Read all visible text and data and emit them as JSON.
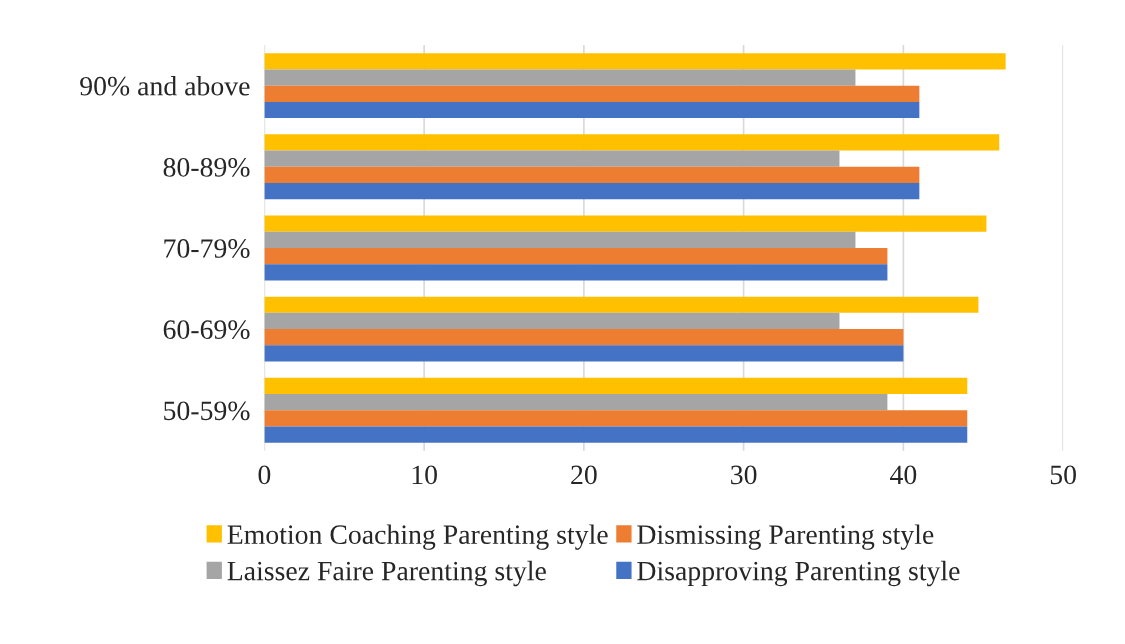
{
  "chart_data": {
    "type": "bar",
    "orientation": "horizontal",
    "categories": [
      "90% and above",
      "80-89%",
      "70-79%",
      "60-69%",
      "50-59%"
    ],
    "series": [
      {
        "name": "Emotion Coaching Parenting style",
        "color": "#ffc000",
        "values": [
          46.4,
          46,
          45.2,
          44.7,
          44
        ]
      },
      {
        "name": "Laissez Faire Parenting style",
        "color": "#a5a5a5",
        "values": [
          37,
          36,
          37,
          36,
          39
        ]
      },
      {
        "name": "Dismissing Parenting style",
        "color": "#ed7d31",
        "values": [
          41,
          41,
          39,
          40,
          44
        ]
      },
      {
        "name": "Disapproving Parenting style",
        "color": "#4472c4",
        "values": [
          41,
          41,
          39,
          40,
          44
        ]
      }
    ],
    "xlim": [
      0,
      50
    ],
    "xticks": [
      0,
      10,
      20,
      30,
      40,
      50
    ],
    "grid": "x",
    "legend": "bottom"
  }
}
